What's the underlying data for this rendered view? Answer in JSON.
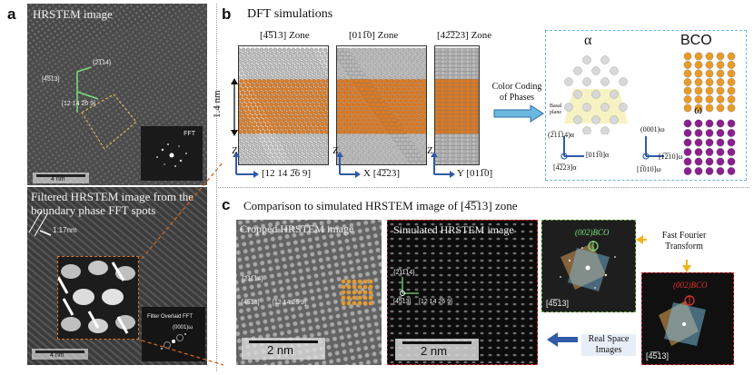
{
  "panel_a": {
    "letter": "a",
    "top": {
      "label": "HRSTEM image",
      "dir1": "{2̅1̅14}",
      "dir2": "[4̅5̅13]",
      "dir3": "[12 14 2̅6 9]",
      "inset_label": "FFT",
      "scale": "4 nm"
    },
    "bottom": {
      "label": "Filtered HRSTEM image from the boundary phase FFT spots",
      "spacing": "1.17nm",
      "inset_label": "Filter Overlaid FFT",
      "inset_spot": "(0001)ω",
      "scale": "4 nm"
    }
  },
  "panel_b": {
    "letter": "b",
    "title": "DFT simulations",
    "zones": [
      {
        "title": "[4̅5̅13] Zone",
        "bottom_axis": "[12 14 2̅6 9]",
        "axis_prefix": "Z",
        "side_axis": "Z"
      },
      {
        "title": "[011̅0] Zone",
        "bottom_axis": "X [4̅2̅23]",
        "axis_prefix": "",
        "side_axis": "Z"
      },
      {
        "title": "[42̅2̅23] Zone",
        "bottom_axis": "Y [011̅0]",
        "axis_prefix": "",
        "side_axis": "Z"
      }
    ],
    "height_label": "1.4 nm",
    "color_coding": "Color Coding of Phases",
    "phases": {
      "alpha": "α",
      "bco": "BCO",
      "omega": "ω",
      "basal": "Basal plane",
      "alpha_dir1": "(2̅11̅14)α",
      "alpha_dir2": "[011̅0]α",
      "alpha_dir3": "[4̅2̅23]α",
      "omega_dir1": "(0001)ω",
      "omega_dir2": "[1̅2̅10]ω",
      "omega_dir3": "[1̅010]ω"
    },
    "colors": {
      "grey": "#bcbcbc",
      "orange": "#e07a1f",
      "bco_orange": "#e89a2a",
      "purple": "#8a1f8f"
    }
  },
  "panel_c": {
    "letter": "c",
    "title": "Comparison to simulated HRSTEM image of [4̅5̅13] zone",
    "cropped_label": "Cropped HRSTEM image",
    "simulated_label": "Simulated HRSTEM image",
    "cropped_dirs": [
      "{2̅11̅14}",
      "[4̅5̅13]",
      "[12 14 2̅6 9]"
    ],
    "sim_dirs": [
      "{2̅11̅14}",
      "[4̅5̅13]",
      "[12 14 2̅6 9]"
    ],
    "scale": "2 nm",
    "fft_spot": "(002)BCO",
    "fft_zone": "[4̅5̅13]",
    "fft_label": "Fast Fourier Transform",
    "real_label": "Real Space Images"
  }
}
